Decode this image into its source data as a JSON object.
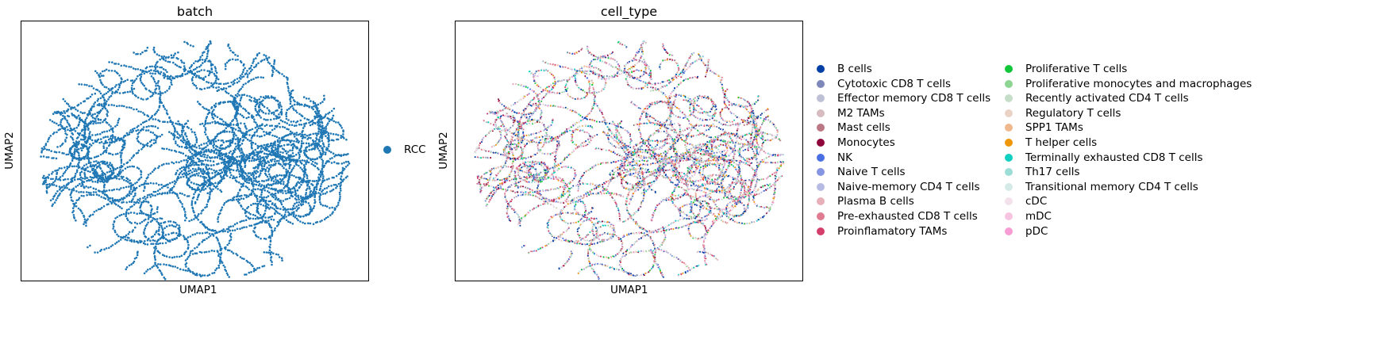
{
  "chart_data": [
    {
      "type": "scatter",
      "title": "batch",
      "xlabel": "UMAP1",
      "ylabel": "UMAP2",
      "grid": false,
      "legend_placement": "right",
      "categories": [
        "RCC"
      ],
      "colors": [
        "#1f77b4"
      ]
    },
    {
      "type": "scatter",
      "title": "cell_type",
      "xlabel": "UMAP1",
      "ylabel": "UMAP2",
      "grid": false,
      "legend_placement": "right, two columns",
      "categories": [
        "B cells",
        "Cytotoxic CD8 T cells",
        "Effector memory CD8 T cells",
        "M2 TAMs",
        "Mast cells",
        "Monocytes",
        "NK",
        "Naive T cells",
        "Naive-memory CD4 T cells",
        "Plasma B cells",
        "Pre-exhausted CD8 T cells",
        "Proinflamatory TAMs",
        "Proliferative T cells",
        "Proliferative monocytes and macrophages",
        "Recently activated CD4 T cells",
        "Regulatory T cells",
        "SPP1 TAMs",
        "T helper cells",
        "Terminally exhausted CD8 T cells",
        "Th17 cells",
        "Transitional memory CD4 T cells",
        "cDC",
        "mDC",
        "pDC"
      ],
      "colors": [
        "#023fa5",
        "#7d87b9",
        "#bec1d4",
        "#d6bcc0",
        "#bb7784",
        "#8e063b",
        "#4a6fe3",
        "#8595e1",
        "#b5bbe3",
        "#e6afb9",
        "#e07b91",
        "#d33f6a",
        "#11c638",
        "#8dd593",
        "#c6dec7",
        "#ead3c6",
        "#f0b98d",
        "#ef9708",
        "#0fcfc0",
        "#9cded6",
        "#d5eae7",
        "#f3e1eb",
        "#f6c4e1",
        "#f79cd4"
      ]
    }
  ]
}
